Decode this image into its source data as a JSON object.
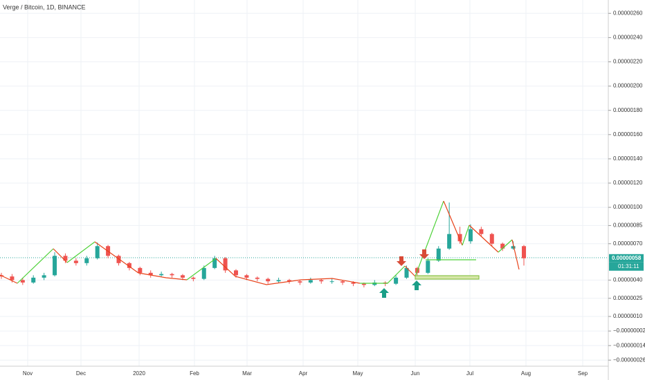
{
  "chart_data": {
    "type": "candlestick",
    "title": "Verge / Bitcoin, 1D, BINANCE",
    "up_color": "#26a69a",
    "down_color": "#ef5350",
    "ylim": [
      -3.1e-07,
      2.71e-06
    ],
    "yticks": [
      {
        "value": 2.6e-06,
        "label": "0.00000260"
      },
      {
        "value": 2.4e-06,
        "label": "0.00000240"
      },
      {
        "value": 2.2e-06,
        "label": "0.00000220"
      },
      {
        "value": 2e-06,
        "label": "0.00000200"
      },
      {
        "value": 1.8e-06,
        "label": "0.00000180"
      },
      {
        "value": 1.6e-06,
        "label": "0.00000160"
      },
      {
        "value": 1.4e-06,
        "label": "0.00000140"
      },
      {
        "value": 1.2e-06,
        "label": "0.00000120"
      },
      {
        "value": 1e-06,
        "label": "0.00000100"
      },
      {
        "value": 8.5e-07,
        "label": "0.00000085"
      },
      {
        "value": 7e-07,
        "label": "0.00000070"
      },
      {
        "value": 4e-07,
        "label": "0.00000040"
      },
      {
        "value": 2.5e-07,
        "label": "0.00000025"
      },
      {
        "value": 1e-07,
        "label": "0.00000010"
      },
      {
        "value": -2e-08,
        "label": "−0.00000002"
      },
      {
        "value": -1.4e-07,
        "label": "−0.00000014"
      },
      {
        "value": -2.6e-07,
        "label": "−0.00000026"
      }
    ],
    "x_labels": [
      "Nov",
      "Dec",
      "2020",
      "Feb",
      "Mar",
      "Apr",
      "May",
      "Jun",
      "Jul",
      "Aug",
      "Sep"
    ],
    "last_price": {
      "value": 5.8e-07,
      "label": "0.00000058"
    },
    "countdown": "01:31:11",
    "ohlc": [
      [
        4.4e-07,
        4.6e-07,
        4.1e-07,
        4.3e-07
      ],
      [
        4.3e-07,
        4.5e-07,
        3.8e-07,
        4e-07
      ],
      [
        4e-07,
        4.2e-07,
        3.6e-07,
        3.8e-07
      ],
      [
        3.8e-07,
        4.4e-07,
        3.7e-07,
        4.2e-07
      ],
      [
        4.2e-07,
        4.6e-07,
        4e-07,
        4.4e-07
      ],
      [
        4.4e-07,
        6.3e-07,
        4.3e-07,
        6e-07
      ],
      [
        6e-07,
        6.2e-07,
        5.4e-07,
        5.6e-07
      ],
      [
        5.6e-07,
        5.8e-07,
        5.2e-07,
        5.4e-07
      ],
      [
        5.4e-07,
        6e-07,
        5.2e-07,
        5.8e-07
      ],
      [
        5.8e-07,
        7.1e-07,
        5.7e-07,
        6.8e-07
      ],
      [
        6.8e-07,
        6.9e-07,
        5.8e-07,
        6e-07
      ],
      [
        6e-07,
        6.1e-07,
        5.2e-07,
        5.4e-07
      ],
      [
        5.4e-07,
        5.5e-07,
        4.8e-07,
        5e-07
      ],
      [
        5e-07,
        5.1e-07,
        4.4e-07,
        4.6e-07
      ],
      [
        4.6e-07,
        4.8e-07,
        4.2e-07,
        4.4e-07
      ],
      [
        4.4e-07,
        4.7e-07,
        4.3e-07,
        4.5e-07
      ],
      [
        4.5e-07,
        4.6e-07,
        4.2e-07,
        4.4e-07
      ],
      [
        4.4e-07,
        4.5e-07,
        4e-07,
        4.2e-07
      ],
      [
        4.2e-07,
        4.3e-07,
        3.9e-07,
        4.1e-07
      ],
      [
        4.1e-07,
        5.2e-07,
        4e-07,
        5e-07
      ],
      [
        5e-07,
        6e-07,
        4.9e-07,
        5.8e-07
      ],
      [
        5.8e-07,
        5.9e-07,
        4.6e-07,
        4.8e-07
      ],
      [
        4.8e-07,
        4.9e-07,
        4.2e-07,
        4.4e-07
      ],
      [
        4.4e-07,
        4.5e-07,
        4e-07,
        4.2e-07
      ],
      [
        4.2e-07,
        4.3e-07,
        3.9e-07,
        4.1e-07
      ],
      [
        4.1e-07,
        4.2e-07,
        3.7e-07,
        3.9e-07
      ],
      [
        3.9e-07,
        4.2e-07,
        3.8e-07,
        4e-07
      ],
      [
        4e-07,
        4.1e-07,
        3.7e-07,
        3.9e-07
      ],
      [
        3.9e-07,
        4e-07,
        3.6e-07,
        3.8e-07
      ],
      [
        3.8e-07,
        4.2e-07,
        3.7e-07,
        4e-07
      ],
      [
        4e-07,
        4.1e-07,
        3.7e-07,
        3.9e-07
      ],
      [
        3.9e-07,
        4.1e-07,
        3.7e-07,
        3.9e-07
      ],
      [
        3.9e-07,
        4e-07,
        3.6e-07,
        3.8e-07
      ],
      [
        3.8e-07,
        3.9e-07,
        3.5e-07,
        3.7e-07
      ],
      [
        3.7e-07,
        3.8e-07,
        3.4e-07,
        3.6e-07
      ],
      [
        3.6e-07,
        4e-07,
        3.5e-07,
        3.8e-07
      ],
      [
        3.8e-07,
        3.9e-07,
        3.5e-07,
        3.7e-07
      ],
      [
        3.7e-07,
        4.4e-07,
        3.6e-07,
        4.2e-07
      ],
      [
        4.2e-07,
        5.2e-07,
        4.1e-07,
        5e-07
      ],
      [
        5e-07,
        5.1e-07,
        4.4e-07,
        4.6e-07
      ],
      [
        4.6e-07,
        5.8e-07,
        4.5e-07,
        5.6e-07
      ],
      [
        5.6e-07,
        6.8e-07,
        5.5e-07,
        6.6e-07
      ],
      [
        6.6e-07,
        1.04e-06,
        6.5e-07,
        7.8e-07
      ],
      [
        7.8e-07,
        8.4e-07,
        7e-07,
        7.2e-07
      ],
      [
        7.2e-07,
        8.6e-07,
        7e-07,
        8.2e-07
      ],
      [
        8.2e-07,
        8.4e-07,
        7.6e-07,
        7.8e-07
      ],
      [
        7.8e-07,
        7.9e-07,
        6.8e-07,
        7e-07
      ],
      [
        7e-07,
        7.1e-07,
        6.4e-07,
        6.6e-07
      ],
      [
        6.6e-07,
        7.2e-07,
        6.5e-07,
        6.8e-07
      ],
      [
        6.8e-07,
        6.9e-07,
        5.2e-07,
        5.8e-07
      ]
    ]
  }
}
